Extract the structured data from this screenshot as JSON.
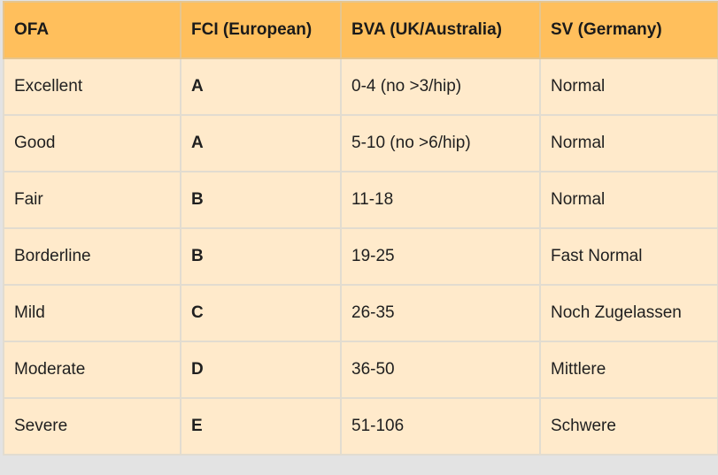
{
  "table": {
    "headers": [
      "OFA",
      "FCI (European)",
      "BVA (UK/Australia)",
      "SV (Germany)"
    ],
    "rows": [
      [
        "Excellent",
        "A",
        "0-4 (no >3/hip)",
        "Normal"
      ],
      [
        "Good",
        "A",
        "5-10 (no >6/hip)",
        "Normal"
      ],
      [
        "Fair",
        "B",
        "11-18",
        "Normal"
      ],
      [
        "Borderline",
        "B",
        "19-25",
        "Fast Normal"
      ],
      [
        "Mild",
        "C",
        "26-35",
        "Noch Zugelassen"
      ],
      [
        "Moderate",
        "D",
        "36-50",
        "Mittlere"
      ],
      [
        "Severe",
        "E",
        "51-106",
        "Schwere"
      ]
    ]
  },
  "colors": {
    "header_bg": "#ffbf5c",
    "row_bg": "#ffeacb",
    "grid": "#e2dcd0"
  }
}
